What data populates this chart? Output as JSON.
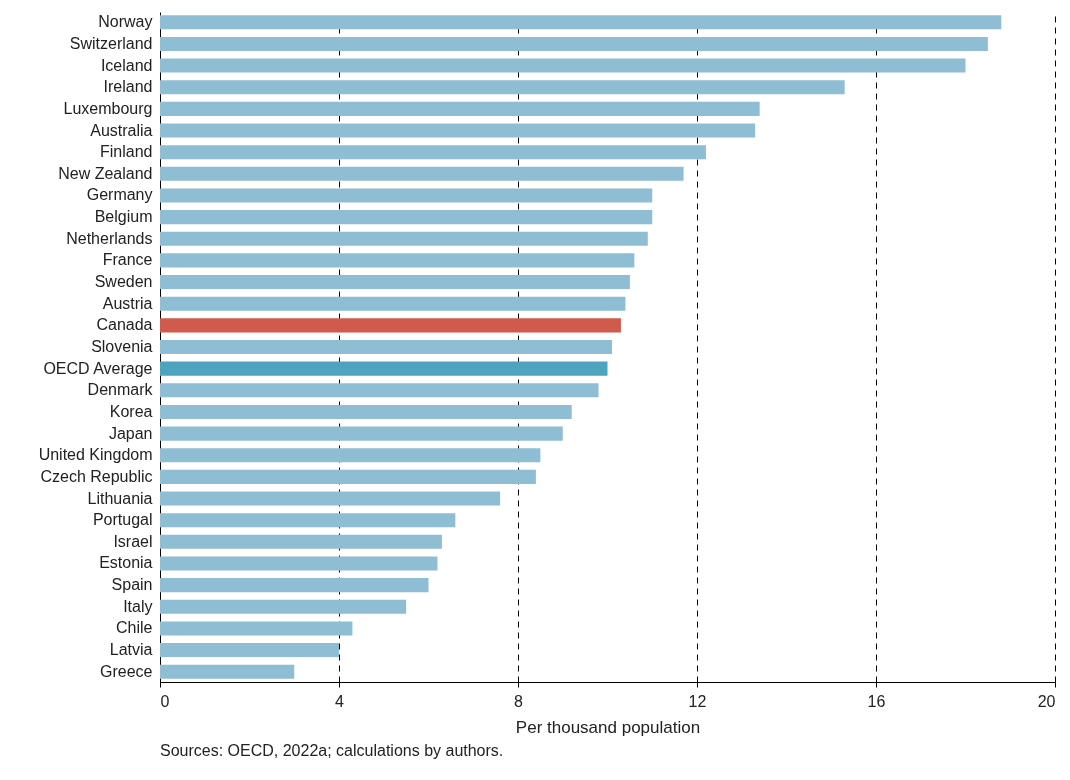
{
  "chart_data": {
    "type": "bar",
    "orientation": "horizontal",
    "categories": [
      "Norway",
      "Switzerland",
      "Iceland",
      "Ireland",
      "Luxembourg",
      "Australia",
      "Finland",
      "New Zealand",
      "Germany",
      "Belgium",
      "Netherlands",
      "France",
      "Sweden",
      "Austria",
      "Canada",
      "Slovenia",
      "OECD Average",
      "Denmark",
      "Korea",
      "Japan",
      "United Kingdom",
      "Czech Republic",
      "Lithuania",
      "Portugal",
      "Israel",
      "Estonia",
      "Spain",
      "Italy",
      "Chile",
      "Latvia",
      "Greece"
    ],
    "values": [
      18.8,
      18.5,
      18.0,
      15.3,
      13.4,
      13.3,
      12.2,
      11.7,
      11.0,
      11.0,
      10.9,
      10.6,
      10.5,
      10.4,
      10.3,
      10.1,
      10.0,
      9.8,
      9.2,
      9.0,
      8.5,
      8.4,
      7.6,
      6.6,
      6.3,
      6.2,
      6.0,
      5.5,
      4.3,
      4.0,
      3.0
    ],
    "colors": [
      "#8fbdd3",
      "#8fbdd3",
      "#8fbdd3",
      "#8fbdd3",
      "#8fbdd3",
      "#8fbdd3",
      "#8fbdd3",
      "#8fbdd3",
      "#8fbdd3",
      "#8fbdd3",
      "#8fbdd3",
      "#8fbdd3",
      "#8fbdd3",
      "#8fbdd3",
      "#d05a4c",
      "#8fbdd3",
      "#4ea3be",
      "#8fbdd3",
      "#8fbdd3",
      "#8fbdd3",
      "#8fbdd3",
      "#8fbdd3",
      "#8fbdd3",
      "#8fbdd3",
      "#8fbdd3",
      "#8fbdd3",
      "#8fbdd3",
      "#8fbdd3",
      "#8fbdd3",
      "#8fbdd3",
      "#8fbdd3"
    ],
    "xlabel": "Per thousand population",
    "xlim": [
      0,
      20
    ],
    "xticks": [
      0,
      4,
      8,
      12,
      16,
      20
    ],
    "grid": "x",
    "annotations": [
      "Sources: OECD, 2022a; calculations by authors."
    ]
  }
}
